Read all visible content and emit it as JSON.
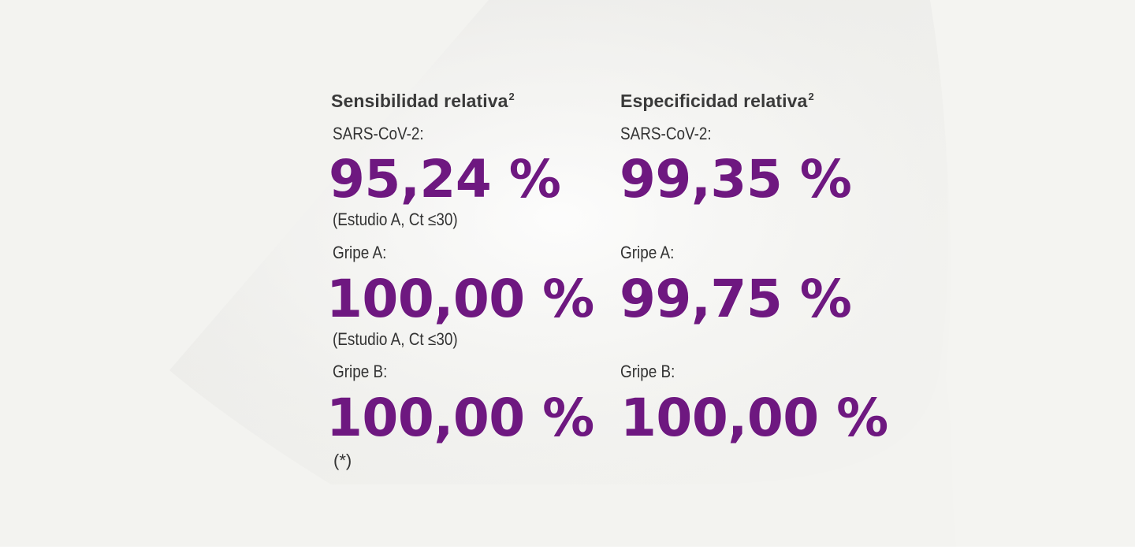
{
  "colors": {
    "background": "#f3f3f0",
    "accent": "#6e1880",
    "text": "#333333"
  },
  "sensitivity": {
    "heading": "Sensibilidad relativa",
    "heading_sup": "2",
    "items": [
      {
        "label": "SARS-CoV-2:",
        "value": "95,24 %",
        "note": "(Estudio A, Ct ≤30)"
      },
      {
        "label": "Gripe A:",
        "value": "100,00 %",
        "note": "(Estudio A, Ct ≤30)"
      },
      {
        "label": "Gripe B:",
        "value": "100,00 %",
        "note": "(*)"
      }
    ]
  },
  "specificity": {
    "heading": "Especificidad relativa",
    "heading_sup": "2",
    "items": [
      {
        "label": "SARS-CoV-2:",
        "value": "99,35 %"
      },
      {
        "label": "Gripe A:",
        "value": "99,75 %"
      },
      {
        "label": "Gripe B:",
        "value": "100,00 %"
      }
    ]
  }
}
